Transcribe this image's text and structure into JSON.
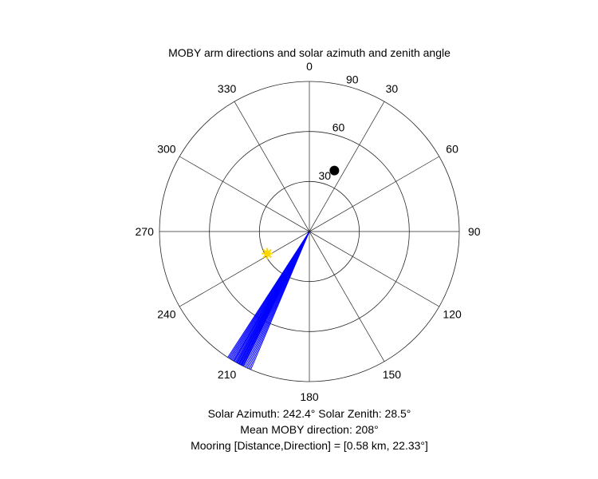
{
  "chart_data": {
    "type": "polar",
    "title": "MOBY arm directions and solar azimuth and zenith angle",
    "r_max": 90,
    "angle_zero": "top",
    "angle_direction": "clockwise",
    "angle_ticks": [
      {
        "angle": 0,
        "label": "0"
      },
      {
        "angle": 30,
        "label": "30"
      },
      {
        "angle": 60,
        "label": "60"
      },
      {
        "angle": 90,
        "label": "90"
      },
      {
        "angle": 120,
        "label": "120"
      },
      {
        "angle": 150,
        "label": "150"
      },
      {
        "angle": 180,
        "label": "180"
      },
      {
        "angle": 210,
        "label": "210"
      },
      {
        "angle": 240,
        "label": "240"
      },
      {
        "angle": 270,
        "label": "270"
      },
      {
        "angle": 300,
        "label": "300"
      },
      {
        "angle": 330,
        "label": "330"
      }
    ],
    "radial_ticks": [
      {
        "r": 30,
        "label": "30"
      },
      {
        "r": 60,
        "label": "60"
      },
      {
        "r": 90,
        "label": "90"
      }
    ],
    "grid": true,
    "series": [
      {
        "kind": "lines",
        "color": "#0000ff",
        "r_end": 90,
        "directions": [
          203.0,
          203.5,
          204.0,
          204.5,
          205.0,
          205.5,
          206.0,
          206.2,
          206.5,
          206.8,
          207.0,
          207.2,
          207.5,
          207.8,
          208.0,
          208.2,
          208.5,
          208.8,
          209.0,
          209.3,
          209.6,
          210.0,
          210.3,
          210.6,
          211.0,
          211.4,
          211.8,
          212.2,
          212.6,
          213.0
        ]
      },
      {
        "kind": "marker",
        "shape": "circle-filled",
        "color": "#000000",
        "angle": 22.33,
        "r": 39.5
      },
      {
        "kind": "marker",
        "shape": "sun",
        "color": "#ffd700",
        "angle": 242.4,
        "r": 28.5
      }
    ],
    "annotations": {
      "solar_line": "Solar Azimuth: 242.4°    Solar Zenith: 28.5°",
      "mean_line": "Mean MOBY direction: 208°",
      "mooring_line": "Mooring [Distance,Direction] = [0.58 km, 22.33°]"
    }
  }
}
